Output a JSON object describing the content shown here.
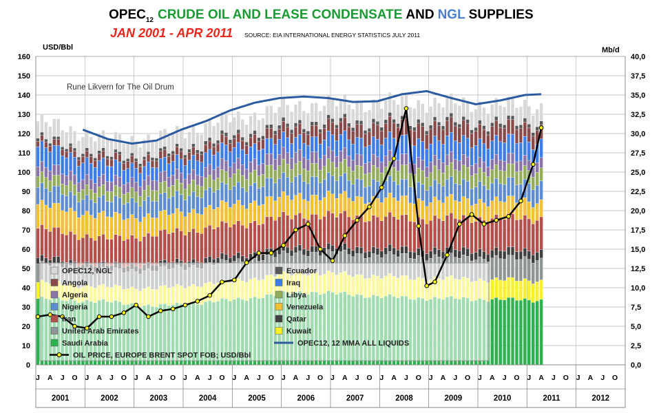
{
  "chart_data": {
    "type": "bar",
    "title": {
      "opec": "OPEC",
      "subscript": "12",
      "crude": "CRUDE OIL AND LEASE CONDENSATE",
      "and": "AND",
      "ngl": "NGL",
      "supplies": "SUPPLIES"
    },
    "subtitle": "JAN 2001 - APR 2011",
    "source": "SOURCE: EIA INTERNATIONAL ENERGY STATISTICS  JULY 2011",
    "annotation": "Rune Likvern for The Oil Drum",
    "ylabel_left": "USD/Bbl",
    "ylabel_right": "Mb/d",
    "ylim_left": [
      0,
      160
    ],
    "ylim_right": [
      0,
      40
    ],
    "yticks_left": [
      "0",
      "10",
      "20",
      "30",
      "40",
      "50",
      "60",
      "70",
      "80",
      "90",
      "100",
      "110",
      "120",
      "130",
      "140",
      "150",
      "160"
    ],
    "yticks_right": [
      "0,0",
      "2,5",
      "5,0",
      "7,5",
      "10,0",
      "12,5",
      "15,0",
      "17,5",
      "20,0",
      "22,5",
      "25,0",
      "27,5",
      "30,0",
      "32,5",
      "35,0",
      "37,5",
      "40,0"
    ],
    "month_letters": [
      "J",
      "A",
      "J",
      "O"
    ],
    "years": [
      "2001",
      "2002",
      "2003",
      "2004",
      "2005",
      "2006",
      "2007",
      "2008",
      "2009",
      "2010",
      "2011",
      "2012"
    ],
    "grid": true,
    "legend_position": "bottom-left",
    "colors": {
      "saudi": "#2db24f",
      "kuwait": "#f7f02a",
      "uae": "#8e9594",
      "qatar": "#404040",
      "iran": "#b3504b",
      "venezuela": "#f2c037",
      "nigeria": "#5d8dd0",
      "libya": "#93ad5b",
      "algeria": "#8a73a8",
      "iraq": "#3f7de6",
      "angola": "#8b4a4a",
      "ecuador": "#595959",
      "ngl": "#d8d8d8",
      "mma": "#2b5aa0",
      "price": "#000000",
      "price_marker": "#ffff00"
    },
    "stack_order": [
      "saudi",
      "kuwait",
      "uae",
      "qatar",
      "iran",
      "venezuela",
      "nigeria",
      "libya",
      "algeria",
      "iraq",
      "angola",
      "ecuador",
      "ngl"
    ],
    "series_base_mbd": [
      {
        "key": "saudi",
        "name": "Saudi Arabia",
        "values": [
          8.6,
          8.2,
          7.6,
          8.4,
          9.5,
          8.7,
          8.4
        ]
      },
      {
        "key": "kuwait",
        "name": "Kuwait",
        "values": [
          2.1,
          1.9,
          2.3,
          2.4,
          2.5,
          2.6,
          2.5
        ]
      },
      {
        "key": "uae",
        "name": "United Arab Emirates",
        "values": [
          2.4,
          2.1,
          2.4,
          2.5,
          2.6,
          2.8,
          2.8
        ]
      },
      {
        "key": "qatar",
        "name": "Qatar",
        "values": [
          0.8,
          0.7,
          0.8,
          0.8,
          0.8,
          0.9,
          1.1
        ]
      },
      {
        "key": "iran",
        "name": "Iran",
        "values": [
          3.8,
          3.4,
          3.8,
          4.0,
          4.1,
          4.0,
          4.2
        ]
      },
      {
        "key": "venezuela",
        "name": "Venezuela",
        "values": [
          3.1,
          2.9,
          2.4,
          2.6,
          2.5,
          2.4,
          2.2
        ]
      },
      {
        "key": "nigeria",
        "name": "Nigeria",
        "values": [
          2.2,
          2.0,
          2.2,
          2.3,
          2.4,
          2.1,
          2.4
        ]
      },
      {
        "key": "libya",
        "name": "Libya",
        "values": [
          1.4,
          1.3,
          1.4,
          1.6,
          1.7,
          1.8,
          1.7
        ]
      },
      {
        "key": "algeria",
        "name": "Algeria",
        "values": [
          1.3,
          1.3,
          1.3,
          1.4,
          1.5,
          1.4,
          1.3
        ]
      },
      {
        "key": "iraq",
        "name": "Iraq",
        "values": [
          2.6,
          2.0,
          1.7,
          2.0,
          1.9,
          2.4,
          2.4
        ]
      },
      {
        "key": "angola",
        "name": "Angola",
        "values": [
          0.7,
          0.9,
          0.9,
          1.1,
          1.4,
          2.0,
          1.8
        ]
      },
      {
        "key": "ecuador",
        "name": "Ecuador",
        "values": [
          0.4,
          0.4,
          0.4,
          0.5,
          0.5,
          0.5,
          0.5
        ]
      },
      {
        "key": "ngl",
        "name": "OPEC12, NGL",
        "values": [
          2.2,
          2.2,
          2.2,
          2.3,
          2.4,
          2.5,
          2.3
        ]
      }
    ],
    "series_base_x": [
      "2001-01",
      "2002-06",
      "2003-06",
      "2004-12",
      "2006-06",
      "2008-07",
      "2011-04"
    ],
    "mma": {
      "name": "OPEC12,  12 MMA ALL LIQUIDS",
      "x": [
        "2001-12",
        "2002-06",
        "2002-12",
        "2003-06",
        "2003-12",
        "2004-06",
        "2004-12",
        "2005-06",
        "2005-12",
        "2006-06",
        "2006-12",
        "2007-06",
        "2007-12",
        "2008-06",
        "2008-12",
        "2009-06",
        "2009-12",
        "2010-06",
        "2010-12",
        "2011-04"
      ],
      "values": [
        30.5,
        29.3,
        28.7,
        29.1,
        30.5,
        31.6,
        33.0,
        34.0,
        34.6,
        34.8,
        34.6,
        34.1,
        34.2,
        35.1,
        35.5,
        34.6,
        33.8,
        34.3,
        35.0,
        35.1
      ]
    },
    "price": {
      "name": "OIL PRICE, EUROPE BRENT SPOT FOB; USD/Bbl",
      "x": [
        "2001-01",
        "2001-04",
        "2001-07",
        "2001-10",
        "2002-01",
        "2002-04",
        "2002-07",
        "2002-10",
        "2003-01",
        "2003-04",
        "2003-07",
        "2003-10",
        "2004-01",
        "2004-04",
        "2004-07",
        "2004-10",
        "2005-01",
        "2005-04",
        "2005-07",
        "2005-10",
        "2006-01",
        "2006-04",
        "2006-07",
        "2006-10",
        "2007-01",
        "2007-04",
        "2007-07",
        "2007-10",
        "2008-01",
        "2008-04",
        "2008-07",
        "2008-10",
        "2008-12",
        "2009-02",
        "2009-05",
        "2009-08",
        "2009-11",
        "2010-02",
        "2010-05",
        "2010-08",
        "2010-11",
        "2011-02",
        "2011-04"
      ],
      "values": [
        25,
        26,
        25,
        20,
        19,
        25,
        25,
        27,
        31,
        25,
        28,
        29,
        31,
        33,
        36,
        43,
        44,
        53,
        58,
        58,
        62,
        70,
        73,
        60,
        54,
        67,
        75,
        82,
        92,
        107,
        133,
        72,
        41,
        43,
        57,
        73,
        78,
        73,
        75,
        77,
        85,
        104,
        123
      ]
    },
    "legend": [
      {
        "key": "ngl",
        "label": "OPEC12, NGL"
      },
      {
        "key": "ecuador",
        "label": "Ecuador"
      },
      {
        "key": "angola",
        "label": "Angola"
      },
      {
        "key": "iraq",
        "label": "Iraq"
      },
      {
        "key": "algeria",
        "label": "Algeria"
      },
      {
        "key": "libya",
        "label": "Libya"
      },
      {
        "key": "nigeria",
        "label": "Nigeria"
      },
      {
        "key": "venezuela",
        "label": "Venezuela"
      },
      {
        "key": "iran",
        "label": "Iran"
      },
      {
        "key": "qatar",
        "label": "Qatar"
      },
      {
        "key": "uae",
        "label": "United Arab Emirates"
      },
      {
        "key": "kuwait",
        "label": "Kuwait"
      },
      {
        "key": "saudi",
        "label": "Saudi Arabia"
      },
      {
        "key": "mma",
        "label": "OPEC12,  12 MMA ALL LIQUIDS",
        "kind": "line"
      },
      {
        "key": "price",
        "label": "OIL PRICE, EUROPE BRENT SPOT FOB; USD/Bbl",
        "kind": "price"
      }
    ]
  }
}
